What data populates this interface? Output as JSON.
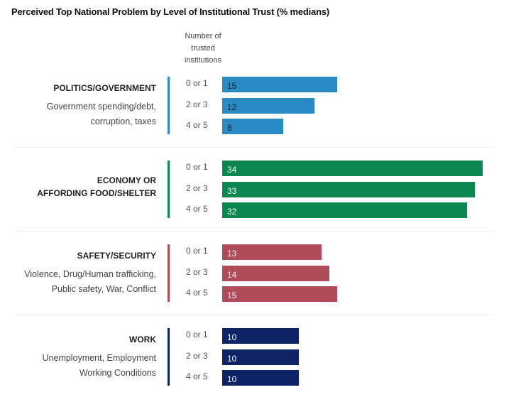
{
  "chart_data": {
    "type": "bar",
    "orientation": "horizontal",
    "title": "Perceived Top National Problem by Level of Institutional Trust (% medians)",
    "row_axis_title": "Number of trusted institutions",
    "row_axis_title_lines": [
      "Number of",
      "trusted",
      "institutions"
    ],
    "categories": [
      "0 or 1",
      "2 or 3",
      "4 or 5"
    ],
    "xlim": [
      0,
      34
    ],
    "groups": [
      {
        "name": "POLITICS/GOVERNMENT",
        "title_lines": [
          "POLITICS/GOVERNMENT"
        ],
        "subtitle_lines": [
          "Government spending/debt,",
          "corruption, taxes"
        ],
        "color": "#2a8bc4",
        "label_color": "#1a1a1a",
        "values": [
          15,
          12,
          8
        ]
      },
      {
        "name": "ECONOMY OR AFFORDING FOOD/SHELTER",
        "title_lines": [
          "ECONOMY OR",
          "AFFORDING FOOD/SHELTER"
        ],
        "subtitle_lines": [],
        "color": "#0b874f",
        "label_color": "#ffffff",
        "values": [
          34,
          33,
          32
        ]
      },
      {
        "name": "SAFETY/SECURITY",
        "title_lines": [
          "SAFETY/SECURITY"
        ],
        "subtitle_lines": [
          "Violence, Drug/Human trafficking,",
          "Public safety, War, Conflict"
        ],
        "color": "#b04c5a",
        "label_color": "#ffffff",
        "values": [
          13,
          14,
          15
        ]
      },
      {
        "name": "WORK",
        "title_lines": [
          "WORK"
        ],
        "subtitle_lines": [
          "Unemployment, Employment",
          "Working Conditions"
        ],
        "color": "#0c2366",
        "label_color": "#ffffff",
        "values": [
          10,
          10,
          10
        ]
      }
    ]
  }
}
